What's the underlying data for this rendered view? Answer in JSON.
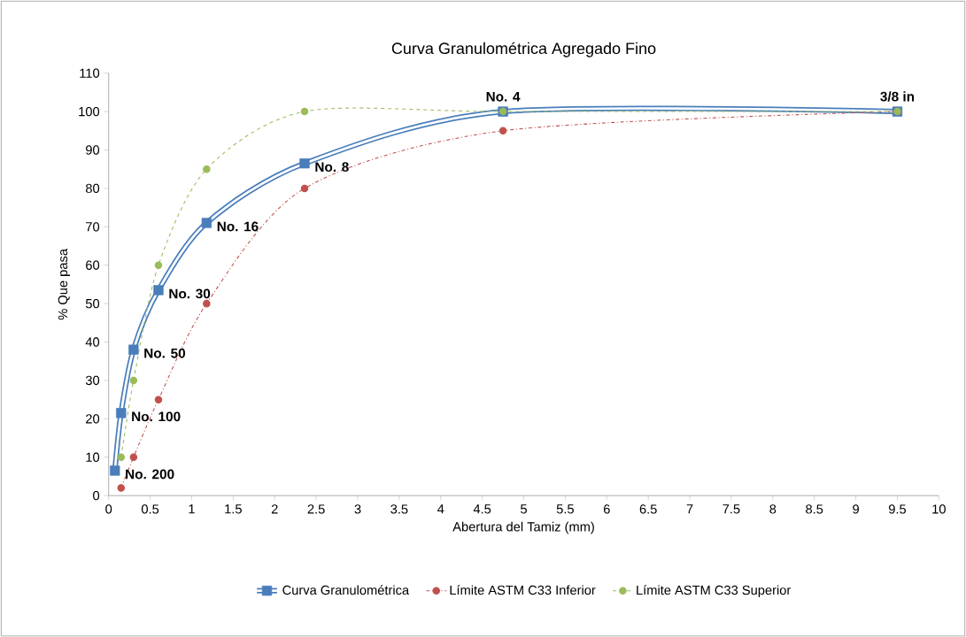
{
  "chart_data": {
    "type": "line",
    "title": "Curva Granulométrica  Agregado Fino",
    "xlabel": "Abertura del Tamiz (mm)",
    "ylabel": "% Que pasa",
    "series": [
      {
        "name": "Curva Granulométrica",
        "color": "#4a7ebb",
        "marker": "square",
        "line_style": "solid",
        "x": [
          0.075,
          0.15,
          0.3,
          0.6,
          1.18,
          2.36,
          4.75,
          9.5
        ],
        "values": [
          6.5,
          21.5,
          38,
          53.5,
          71,
          86.5,
          100,
          100
        ]
      },
      {
        "name": "Límite ASTM C33 Inferior",
        "color": "#c0504d",
        "marker": "circle",
        "line_style": "dashdot",
        "x": [
          0.15,
          0.3,
          0.6,
          1.18,
          2.36,
          4.75,
          9.5
        ],
        "values": [
          2,
          10,
          25,
          50,
          80,
          95,
          100
        ]
      },
      {
        "name": "Límite ASTM C33 Superior",
        "color": "#9bbb59",
        "marker": "circle",
        "line_style": "dashed",
        "x": [
          0.15,
          0.3,
          0.6,
          1.18,
          2.36,
          4.75,
          9.5
        ],
        "values": [
          10,
          30,
          60,
          85,
          100,
          100,
          100
        ]
      }
    ],
    "annotations": [
      {
        "text": "No. 200",
        "x": 0.075,
        "y": 6.5
      },
      {
        "text": "No. 100",
        "x": 0.15,
        "y": 21.5
      },
      {
        "text": "No. 50",
        "x": 0.3,
        "y": 38
      },
      {
        "text": "No. 30",
        "x": 0.6,
        "y": 53.5
      },
      {
        "text": "No. 16",
        "x": 1.18,
        "y": 71
      },
      {
        "text": "No. 8",
        "x": 2.36,
        "y": 86.5
      },
      {
        "text": "No. 4",
        "x": 4.75,
        "y": 100
      },
      {
        "text": "3/8 in",
        "x": 9.5,
        "y": 100
      }
    ],
    "xlim": [
      0,
      10
    ],
    "xticks": [
      0,
      0.5,
      1,
      1.5,
      2,
      2.5,
      3,
      3.5,
      4,
      4.5,
      5,
      5.5,
      6,
      6.5,
      7,
      7.5,
      8,
      8.5,
      9,
      9.5,
      10
    ],
    "ylim": [
      0,
      110
    ],
    "yticks": [
      0,
      10,
      20,
      30,
      40,
      50,
      60,
      70,
      80,
      90,
      100,
      110
    ],
    "grid": false,
    "legend": "bottom"
  }
}
